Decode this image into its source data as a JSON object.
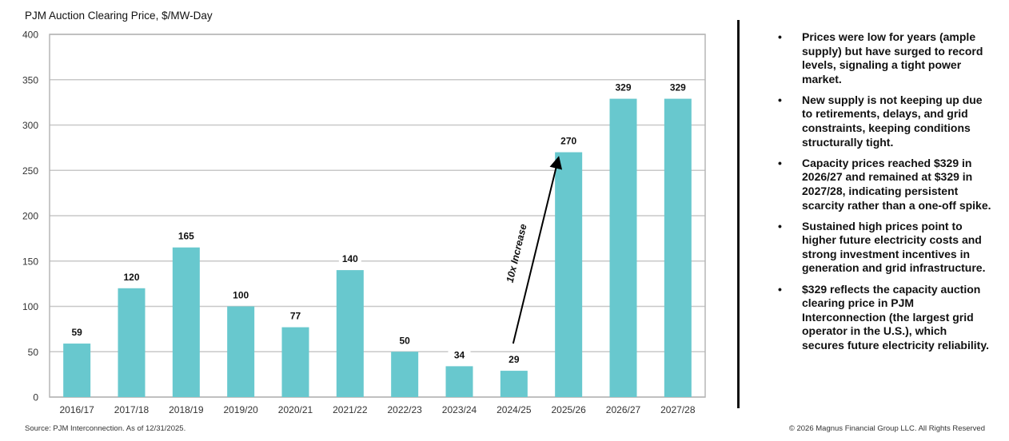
{
  "chart_data": {
    "type": "bar",
    "title": "PJM Auction Clearing Price, $/MW-Day",
    "categories": [
      "2016/17",
      "2017/18",
      "2018/19",
      "2019/20",
      "2020/21",
      "2021/22",
      "2022/23",
      "2023/24",
      "2024/25",
      "2025/26",
      "2026/27",
      "2027/28"
    ],
    "values": [
      59,
      120,
      165,
      100,
      77,
      140,
      50,
      34,
      29,
      270,
      329,
      329
    ],
    "ylim": [
      0,
      400
    ],
    "yticks": [
      0,
      50,
      100,
      150,
      200,
      250,
      300,
      350,
      400
    ],
    "grid": true,
    "bar_color": "#68c8ce",
    "annotation": {
      "text": "10x Increase",
      "from_category": "2024/25",
      "to_category": "2025/26"
    }
  },
  "bullets": [
    "Prices were low for years (ample supply) but have surged to record levels, signaling a tight power market.",
    "New supply is not keeping up due to retirements, delays, and grid constraints, keeping conditions structurally tight.",
    "Capacity prices reached $329 in 2026/27 and remained at $329 in 2027/28, indicating persistent scarcity rather than a one-off spike.",
    "Sustained high prices point to higher future electricity costs and strong investment incentives in generation and grid infrastructure.",
    "$329 reflects the capacity auction clearing price in PJM Interconnection (the largest grid operator in the U.S.), which secures future electricity reliability."
  ],
  "bullet_symbol": "•",
  "footer": {
    "source": "Source: PJM Interconnection. As of 12/31/2025.",
    "copyright": "© 2026 Magnus Financial Group LLC. All Rights Reserved"
  }
}
